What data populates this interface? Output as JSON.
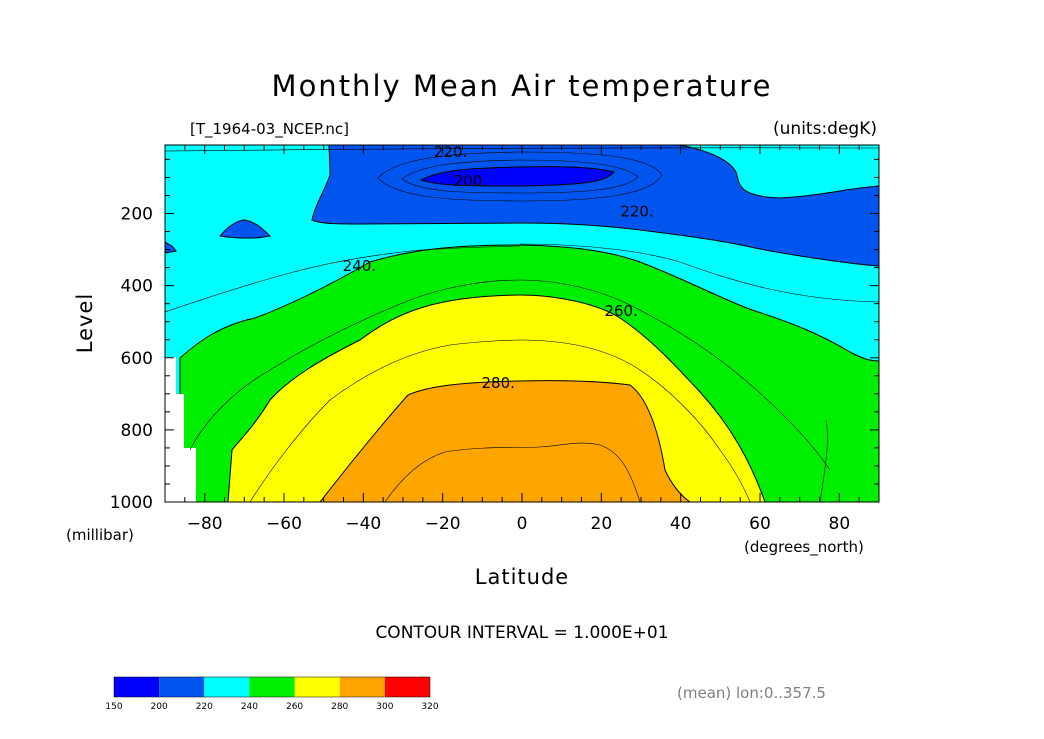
{
  "chart_data": {
    "type": "contour",
    "title": "Monthly Mean Air temperature",
    "file_label": "[T_1964-03_NCEP.nc]",
    "units_label": "(units:degK)",
    "xlabel": "Latitude",
    "xunits": "(degrees_north)",
    "ylabel": "Level",
    "yunits": "(millibar)",
    "xlim": [
      -90,
      90
    ],
    "ylim": [
      1000,
      10
    ],
    "x_ticks": [
      -80,
      -60,
      -40,
      -20,
      0,
      20,
      40,
      60,
      80
    ],
    "y_ticks": [
      200,
      400,
      600,
      800,
      1000
    ],
    "contour_labels": [
      {
        "text": "220.",
        "lat": -18,
        "lev": 30
      },
      {
        "text": "200.",
        "lat": -13,
        "lev": 110
      },
      {
        "text": "220.",
        "lat": 29,
        "lev": 195
      },
      {
        "text": "240.",
        "lat": -41,
        "lev": 345
      },
      {
        "text": "260.",
        "lat": 25,
        "lev": 470
      },
      {
        "text": "280.",
        "lat": -6,
        "lev": 670
      }
    ],
    "contour_interval": "CONTOUR INTERVAL = 1.000E+01",
    "averaging_note": "(mean) lon:0..357.5",
    "colorbar": {
      "levels": [
        "150",
        "200",
        "220",
        "240",
        "260",
        "280",
        "300",
        "320"
      ],
      "colors": [
        "#0000ff",
        "#0055ee",
        "#00ffff",
        "#00ee00",
        "#ffff00",
        "#ffa500",
        "#ff0000"
      ]
    }
  }
}
